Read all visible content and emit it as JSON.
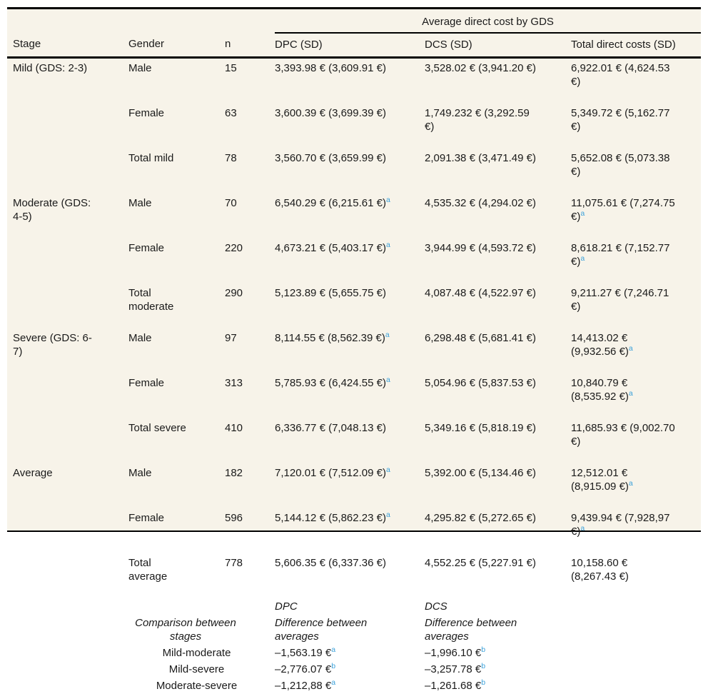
{
  "table": {
    "spanner": "Average direct cost by GDS",
    "headers": {
      "stage": "Stage",
      "gender": "Gender",
      "n": "n",
      "dpc": "DPC (SD)",
      "dcs": "DCS (SD)",
      "total": "Total direct costs (SD)"
    },
    "rows": [
      {
        "stage": "Mild (GDS: 2-3)",
        "gender": "Male",
        "n": "15",
        "dpc": "3,393.98 € (3,609.91 €)",
        "dcs": "3,528.02 € (3,941.20 €)",
        "total": "6,922.01 € (4,624.53 €)"
      },
      {
        "stage": "",
        "gender": "Female",
        "n": "63",
        "dpc": "3,600.39 € (3,699.39 €)",
        "dcs": "1,749.232 € (3,292.59 €)",
        "total": "5,349.72 € (5,162.77 €)"
      },
      {
        "stage": "",
        "gender": "Total mild",
        "n": "78",
        "dpc": "3,560.70 € (3,659.99 €)",
        "dcs": "2,091.38 € (3,471.49 €)",
        "total": "5,652.08 € (5,073.38 €)"
      },
      {
        "stage": "Moderate (GDS: 4-5)",
        "gender": "Male",
        "n": "70",
        "dpc": "6,540.29 € (6,215.61 €)",
        "dpc_sup": "a",
        "dcs": "4,535.32 € (4,294.02 €)",
        "total": "11,075.61 € (7,274.75 €)",
        "total_sup": "a"
      },
      {
        "stage": "",
        "gender": "Female",
        "n": "220",
        "dpc": "4,673.21 € (5,403.17 €)",
        "dpc_sup": "a",
        "dcs": "3,944.99 € (4,593.72 €)",
        "total": "8,618.21 € (7,152.77 €)",
        "total_sup": "a"
      },
      {
        "stage": "",
        "gender": "Total moderate",
        "n": "290",
        "dpc": "5,123.89 € (5,655.75 €)",
        "dcs": "4,087.48 € (4,522.97 €)",
        "total": "9,211.27 € (7,246.71 €)"
      },
      {
        "stage": "Severe (GDS: 6-7)",
        "gender": "Male",
        "n": "97",
        "dpc": "8,114.55 € (8,562.39 €)",
        "dpc_sup": "a",
        "dcs": "6,298.48 € (5,681.41 €)",
        "total": "14,413.02 € (9,932.56 €)",
        "total_sup": "a"
      },
      {
        "stage": "",
        "gender": "Female",
        "n": "313",
        "dpc": "5,785.93 € (6,424.55 €)",
        "dpc_sup": "a",
        "dcs": "5,054.96 € (5,837.53 €)",
        "total": "10,840.79 € (8,535.92 €)",
        "total_sup": "a"
      },
      {
        "stage": "",
        "gender": "Total severe",
        "n": "410",
        "dpc": "6,336.77 € (7,048.13 €)",
        "dcs": "5,349.16 € (5,818.19 €)",
        "total": "11,685.93 € (9,002.70 €)"
      },
      {
        "stage": "Average",
        "gender": "Male",
        "n": "182",
        "dpc": "7,120.01 € (7,512.09 €)",
        "dpc_sup": "a",
        "dcs": "5,392.00 € (5,134.46 €)",
        "total": "12,512.01 € (8,915.09 €)",
        "total_sup": "a"
      },
      {
        "stage": "",
        "gender": "Female",
        "n": "596",
        "dpc": "5,144.12 € (5,862.23 €)",
        "dpc_sup": "a",
        "dcs": "4,295.82 € (5,272.65 €)",
        "total": "9,439.94 € (7,928,97 €)",
        "total_sup": "a"
      },
      {
        "stage": "",
        "gender": "Total average",
        "n": "778",
        "dpc": "5,606.35 € (6,337.36 €)",
        "dcs": "4,552.25 € (5,227.91 €)",
        "total": "10,158.60 € (8,267.43 €)"
      }
    ],
    "comparison": {
      "dpc_col_label": "DPC",
      "dcs_col_label": "DCS",
      "row_label": "Comparison between stages",
      "dpc_sub_label": "Difference between averages",
      "dcs_sub_label": "Difference between averages",
      "rows": [
        {
          "label": "Mild-moderate",
          "dpc": "–1,563.19 €",
          "dpc_sup": "a",
          "dcs": "–1,996.10 €",
          "dcs_sup": "b"
        },
        {
          "label": "Mild-severe",
          "dpc": "–2,776.07 €",
          "dpc_sup": "b",
          "dcs": "–3,257.78 €",
          "dcs_sup": "b"
        },
        {
          "label": "Moderate-severe",
          "dpc": "–1,212,88 €",
          "dpc_sup": "a",
          "dcs": "–1,261.68 €",
          "dcs_sup": "b"
        }
      ]
    },
    "colors": {
      "table_background": "#f7f3e9",
      "text": "#1a1a1a",
      "footnote_marker": "#3ba1da",
      "rule": "#000000"
    }
  }
}
